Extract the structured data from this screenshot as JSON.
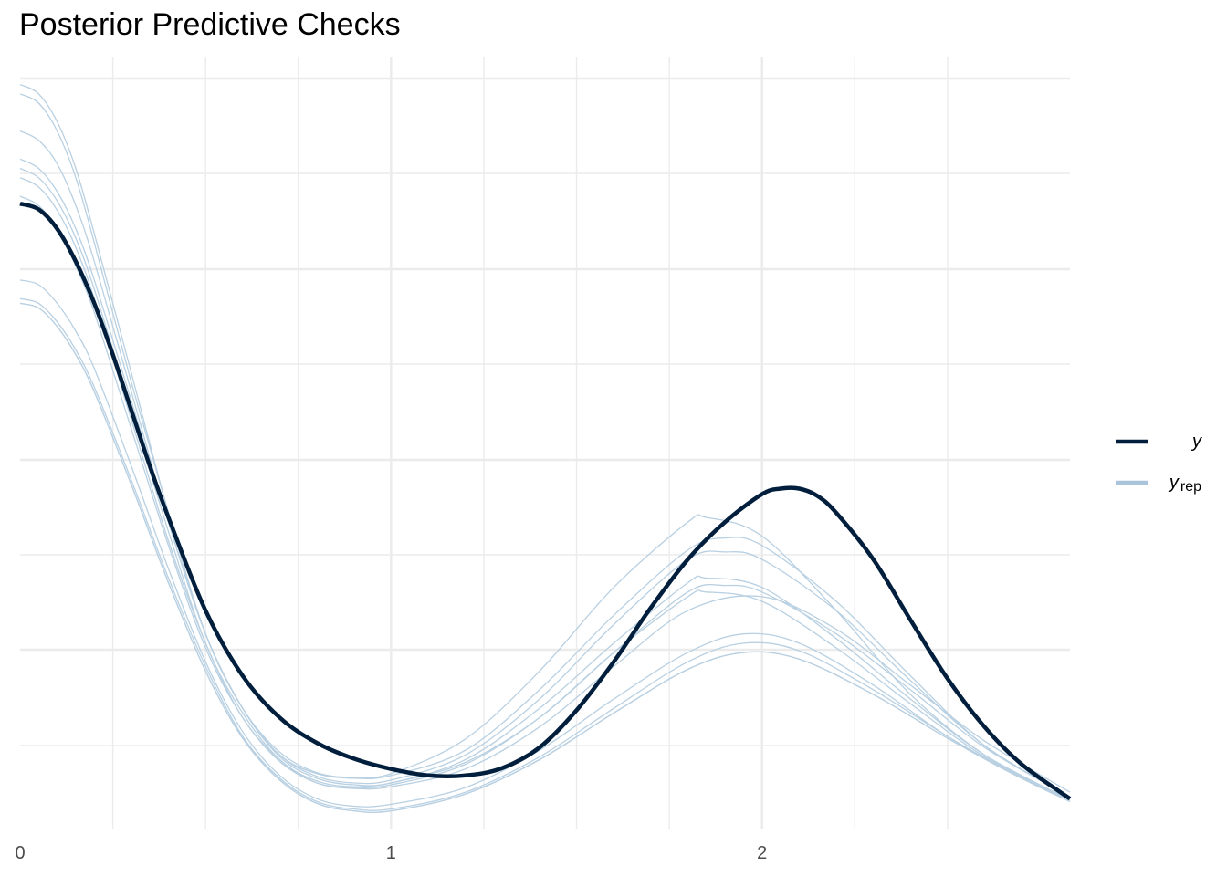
{
  "title": "Posterior Predictive Checks",
  "colors": {
    "y": "#011f3d",
    "yrep": "#b8d0e2",
    "yrep_legend": "#a9c4db",
    "grid": "#ebebeb"
  },
  "chart_data": {
    "type": "line",
    "title": "Posterior Predictive Checks",
    "xlabel": "",
    "ylabel": "",
    "xlim": [
      0,
      2.83
    ],
    "ylim": [
      0,
      0.83
    ],
    "x_ticks": [
      "0",
      "1",
      "2"
    ],
    "grid": true,
    "y_tick_labels_shown": false,
    "legend": {
      "placement": "right",
      "entries": [
        {
          "key": "y",
          "label": "y",
          "sub": ""
        },
        {
          "key": "yrep",
          "label": "y",
          "sub": "rep"
        }
      ]
    },
    "series": [
      {
        "key": "y",
        "x": [
          0,
          0.05,
          0.1,
          0.15,
          0.2,
          0.25,
          0.3,
          0.35,
          0.4,
          0.5,
          0.6,
          0.7,
          0.8,
          0.9,
          1,
          1.1,
          1.2,
          1.3,
          1.4,
          1.5,
          1.6,
          1.7,
          1.8,
          1.9,
          2,
          2.05,
          2.1,
          2.15,
          2.2,
          2.3,
          2.4,
          2.5,
          2.6,
          2.7,
          2.83
        ],
        "y": [
          0.672,
          0.666,
          0.645,
          0.61,
          0.565,
          0.51,
          0.45,
          0.39,
          0.335,
          0.235,
          0.165,
          0.12,
          0.093,
          0.076,
          0.065,
          0.058,
          0.058,
          0.066,
          0.088,
          0.128,
          0.18,
          0.238,
          0.29,
          0.33,
          0.36,
          0.366,
          0.366,
          0.358,
          0.34,
          0.29,
          0.225,
          0.162,
          0.11,
          0.07,
          0.033
        ]
      },
      {
        "key": "yrep",
        "x": [
          0,
          0.05,
          0.1,
          0.15,
          0.2,
          0.3,
          0.4,
          0.5,
          0.6,
          0.7,
          0.8,
          0.9,
          1,
          1.2,
          1.4,
          1.6,
          1.8,
          1.85,
          2,
          2.2,
          2.4,
          2.6,
          2.83
        ],
        "y": [
          0.8,
          0.79,
          0.76,
          0.71,
          0.64,
          0.49,
          0.34,
          0.21,
          0.13,
          0.083,
          0.061,
          0.056,
          0.06,
          0.097,
          0.17,
          0.26,
          0.33,
          0.335,
          0.315,
          0.235,
          0.145,
          0.08,
          0.03
        ]
      },
      {
        "key": "yrep",
        "x": [
          0,
          0.05,
          0.1,
          0.15,
          0.2,
          0.3,
          0.4,
          0.5,
          0.6,
          0.7,
          0.8,
          0.9,
          1,
          1.2,
          1.4,
          1.6,
          1.8,
          1.9,
          2,
          2.2,
          2.4,
          2.6,
          2.83
        ],
        "y": [
          0.79,
          0.78,
          0.75,
          0.7,
          0.63,
          0.48,
          0.34,
          0.21,
          0.13,
          0.08,
          0.06,
          0.055,
          0.058,
          0.085,
          0.15,
          0.23,
          0.3,
          0.313,
          0.305,
          0.245,
          0.165,
          0.09,
          0.035
        ]
      },
      {
        "key": "yrep",
        "x": [
          0,
          0.05,
          0.1,
          0.15,
          0.2,
          0.3,
          0.4,
          0.5,
          0.6,
          0.7,
          0.8,
          0.9,
          1,
          1.2,
          1.4,
          1.6,
          1.8,
          1.9,
          2,
          2.2,
          2.4,
          2.6,
          2.83
        ],
        "y": [
          0.75,
          0.74,
          0.715,
          0.67,
          0.61,
          0.47,
          0.33,
          0.21,
          0.13,
          0.08,
          0.057,
          0.05,
          0.053,
          0.08,
          0.14,
          0.22,
          0.29,
          0.298,
          0.29,
          0.235,
          0.16,
          0.09,
          0.035
        ]
      },
      {
        "key": "yrep",
        "x": [
          0,
          0.05,
          0.1,
          0.15,
          0.2,
          0.3,
          0.4,
          0.5,
          0.6,
          0.7,
          0.8,
          0.9,
          1,
          1.2,
          1.4,
          1.6,
          1.8,
          1.85,
          2,
          2.2,
          2.4,
          2.6,
          2.83
        ],
        "y": [
          0.72,
          0.71,
          0.685,
          0.645,
          0.59,
          0.46,
          0.33,
          0.21,
          0.13,
          0.078,
          0.055,
          0.048,
          0.05,
          0.075,
          0.13,
          0.2,
          0.265,
          0.27,
          0.26,
          0.205,
          0.14,
          0.08,
          0.032
        ]
      },
      {
        "key": "yrep",
        "x": [
          0,
          0.05,
          0.1,
          0.15,
          0.2,
          0.3,
          0.4,
          0.5,
          0.6,
          0.7,
          0.8,
          0.9,
          1,
          1.2,
          1.4,
          1.6,
          1.8,
          1.9,
          2,
          2.2,
          2.4,
          2.6,
          2.83
        ],
        "y": [
          0.71,
          0.7,
          0.675,
          0.635,
          0.58,
          0.45,
          0.32,
          0.2,
          0.125,
          0.075,
          0.052,
          0.046,
          0.05,
          0.072,
          0.12,
          0.19,
          0.255,
          0.262,
          0.255,
          0.21,
          0.15,
          0.088,
          0.035
        ]
      },
      {
        "key": "yrep",
        "x": [
          0,
          0.05,
          0.1,
          0.15,
          0.2,
          0.3,
          0.4,
          0.5,
          0.6,
          0.7,
          0.8,
          0.9,
          1,
          1.2,
          1.4,
          1.6,
          1.8,
          1.85,
          2,
          2.2,
          2.4,
          2.6,
          2.83
        ],
        "y": [
          0.7,
          0.69,
          0.665,
          0.625,
          0.57,
          0.44,
          0.31,
          0.2,
          0.12,
          0.075,
          0.05,
          0.045,
          0.048,
          0.07,
          0.12,
          0.19,
          0.25,
          0.255,
          0.245,
          0.195,
          0.135,
          0.078,
          0.03
        ]
      },
      {
        "key": "yrep",
        "x": [
          0,
          0.05,
          0.1,
          0.15,
          0.2,
          0.3,
          0.4,
          0.5,
          0.6,
          0.7,
          0.8,
          0.9,
          1,
          1.2,
          1.4,
          1.6,
          1.8,
          2,
          2.2,
          2.4,
          2.6,
          2.83
        ],
        "y": [
          0.68,
          0.67,
          0.645,
          0.605,
          0.555,
          0.43,
          0.305,
          0.195,
          0.12,
          0.073,
          0.05,
          0.044,
          0.046,
          0.065,
          0.11,
          0.175,
          0.235,
          0.25,
          0.215,
          0.155,
          0.095,
          0.04
        ]
      },
      {
        "key": "yrep",
        "x": [
          0,
          0.05,
          0.1,
          0.15,
          0.2,
          0.3,
          0.4,
          0.5,
          0.6,
          0.7,
          0.8,
          0.9,
          1,
          1.2,
          1.4,
          1.6,
          1.8,
          1.95,
          2.1,
          2.3,
          2.5,
          2.7,
          2.83
        ],
        "y": [
          0.59,
          0.585,
          0.565,
          0.535,
          0.495,
          0.39,
          0.28,
          0.18,
          0.105,
          0.058,
          0.033,
          0.025,
          0.027,
          0.045,
          0.085,
          0.14,
          0.19,
          0.21,
          0.2,
          0.155,
          0.1,
          0.055,
          0.03
        ]
      },
      {
        "key": "yrep",
        "x": [
          0,
          0.05,
          0.1,
          0.15,
          0.2,
          0.3,
          0.4,
          0.5,
          0.6,
          0.7,
          0.8,
          0.9,
          1,
          1.2,
          1.4,
          1.6,
          1.8,
          1.95,
          2.1,
          2.3,
          2.5,
          2.7,
          2.83
        ],
        "y": [
          0.57,
          0.565,
          0.545,
          0.515,
          0.475,
          0.375,
          0.27,
          0.175,
          0.1,
          0.055,
          0.03,
          0.022,
          0.022,
          0.04,
          0.078,
          0.13,
          0.18,
          0.2,
          0.192,
          0.15,
          0.1,
          0.055,
          0.032
        ]
      },
      {
        "key": "yrep",
        "x": [
          0,
          0.05,
          0.1,
          0.15,
          0.2,
          0.3,
          0.4,
          0.5,
          0.6,
          0.7,
          0.8,
          0.9,
          1,
          1.2,
          1.4,
          1.6,
          1.8,
          1.95,
          2.1,
          2.3,
          2.5,
          2.7,
          2.83
        ],
        "y": [
          0.565,
          0.56,
          0.54,
          0.51,
          0.47,
          0.37,
          0.265,
          0.17,
          0.098,
          0.053,
          0.028,
          0.02,
          0.02,
          0.038,
          0.075,
          0.125,
          0.172,
          0.19,
          0.183,
          0.145,
          0.098,
          0.055,
          0.034
        ]
      },
      {
        "key": "yrep",
        "x": [
          0,
          0.05,
          0.1,
          0.15,
          0.2,
          0.3,
          0.4,
          0.5,
          0.6,
          0.7,
          0.8,
          0.9,
          1,
          1.2,
          1.4,
          1.6,
          1.8,
          1.95,
          2.1,
          2.3,
          2.5,
          2.7,
          2.83
        ],
        "y": [
          0.565,
          0.56,
          0.54,
          0.51,
          0.47,
          0.37,
          0.265,
          0.17,
          0.098,
          0.053,
          0.028,
          0.02,
          0.02,
          0.038,
          0.075,
          0.125,
          0.172,
          0.19,
          0.183,
          0.145,
          0.098,
          0.055,
          0.034
        ]
      }
    ]
  }
}
